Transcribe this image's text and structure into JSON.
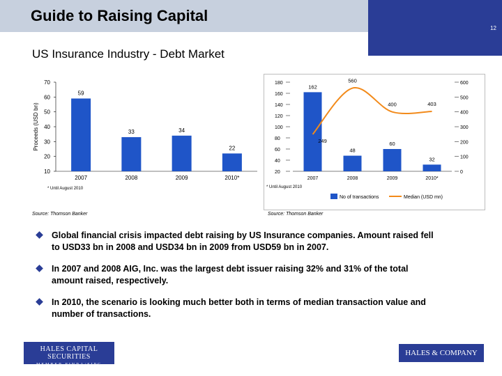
{
  "header": {
    "title": "Guide to Raising Capital",
    "page_number": "12"
  },
  "subtitle": "US Insurance Industry - Debt Market",
  "sources": {
    "left": "Source: Thomson Banker",
    "right": "Source: Thomson Banker"
  },
  "bullets": [
    "Global financial crisis impacted debt raising by US Insurance companies. Amount raised fell to USD33 bn in 2008 and USD34 bn in 2009 from USD59 bn in 2007.",
    "In 2007 and 2008 AIG, Inc. was the largest debt issuer raising 32% and 31% of the total amount raised, respectively.",
    "In 2010, the scenario is looking much better both in terms of median transaction value and number of transactions."
  ],
  "logos": {
    "left_line1": "HALES CAPITAL SECURITIES",
    "left_line2": "MEMBER FINRA/SIPC",
    "right": "HALES & COMPANY"
  },
  "colors": {
    "bar": "#1f55c8",
    "line": "#f28a1a",
    "accent": "#2a3d96"
  },
  "chart_data": [
    {
      "type": "bar",
      "categories": [
        "2007",
        "2008",
        "2009",
        "2010*"
      ],
      "values": [
        59,
        33,
        34,
        22
      ],
      "ylabel": "Proceeds (USD bn)",
      "ylim": [
        10,
        70
      ],
      "yticks": [
        10,
        20,
        30,
        40,
        50,
        60,
        70
      ],
      "footnote": "* Until August 2010"
    },
    {
      "type": "bar+line",
      "categories": [
        "2007",
        "2008",
        "2009",
        "2010*"
      ],
      "series": [
        {
          "name": "No of transactions",
          "values": [
            162,
            48,
            60,
            32
          ],
          "axis": "left"
        },
        {
          "name": "Median (USD mn)",
          "values": [
            249,
            560,
            400,
            403
          ],
          "axis": "right"
        }
      ],
      "left_ylim": [
        20,
        180
      ],
      "left_yticks": [
        20,
        40,
        60,
        80,
        100,
        120,
        140,
        160,
        180
      ],
      "right_ylim": [
        0,
        600
      ],
      "right_yticks": [
        0,
        100,
        200,
        300,
        400,
        500,
        600
      ],
      "footnote": "* Until August 2010",
      "legend": "bottom"
    }
  ]
}
